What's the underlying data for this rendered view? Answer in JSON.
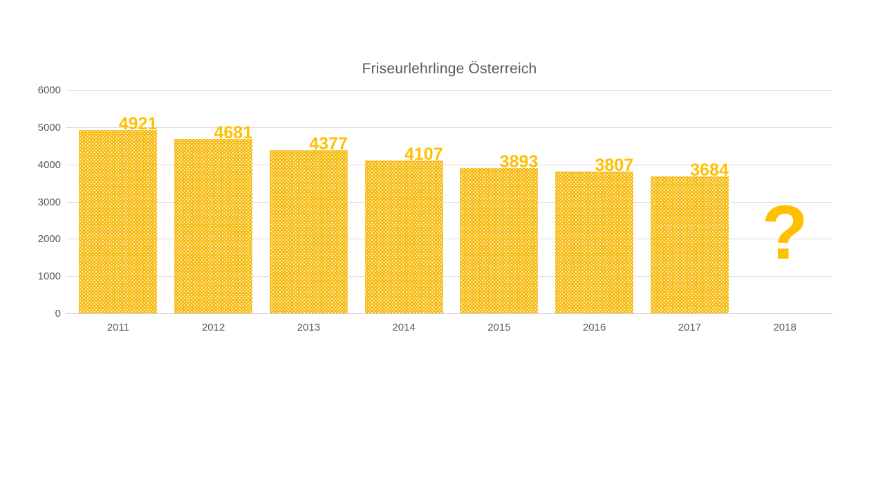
{
  "chart_data": {
    "type": "bar",
    "title": "Friseurlehrlinge Österreich",
    "categories": [
      "2011",
      "2012",
      "2013",
      "2014",
      "2015",
      "2016",
      "2017",
      "2018"
    ],
    "values": [
      4921,
      4681,
      4377,
      4107,
      3893,
      3807,
      3684,
      null
    ],
    "data_labels": [
      "4921",
      "4681",
      "4377",
      "4107",
      "3893",
      "3807",
      "3684",
      "?"
    ],
    "missing_value": {
      "category": "2018",
      "symbol": "?"
    },
    "xlabel": "",
    "ylabel": "",
    "ylim": [
      0,
      6000
    ],
    "yticks": [
      0,
      1000,
      2000,
      3000,
      4000,
      5000,
      6000
    ],
    "grid": true,
    "legend": "none",
    "bar_fill_pattern": "dotted",
    "colors": {
      "bar": "#F6B600",
      "data_label": "#FFC000",
      "axis_text": "#595959",
      "title_text": "#595959",
      "gridline": "#D9D9D9",
      "background": "#FFFFFF"
    }
  }
}
